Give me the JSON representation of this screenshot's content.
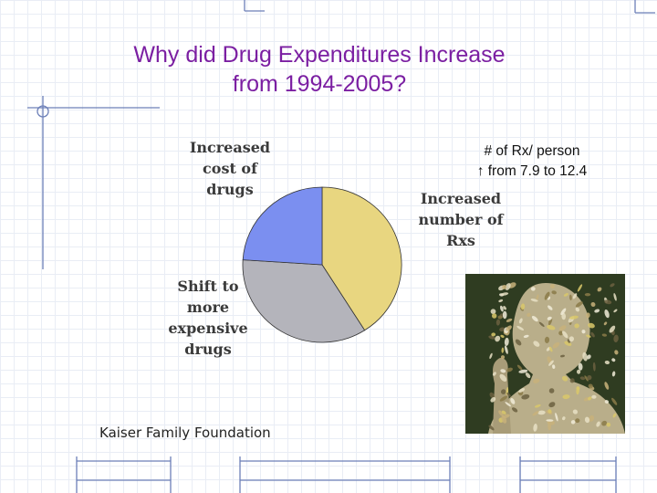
{
  "title": {
    "line1": "Why did Drug Expenditures Increase",
    "line2": "from 1994-2005?"
  },
  "chart_data": {
    "type": "pie",
    "slices": [
      {
        "label": "Increased number of Rxs",
        "value": 41,
        "color": "#e8d680"
      },
      {
        "label": "Shift to more expensive drugs",
        "value": 35,
        "color": "#b4b4bb"
      },
      {
        "label": "Increased cost of drugs",
        "value": 24,
        "color": "#7b8ff0"
      }
    ],
    "labels_text": {
      "cost": [
        "Increased",
        "cost of",
        "drugs"
      ],
      "shift": [
        "Shift to",
        "more",
        "expensive",
        "drugs"
      ],
      "number": [
        "Increased",
        "number of",
        "Rxs"
      ]
    },
    "annotation": {
      "line1": "# of Rx/ person",
      "arrow": "↑",
      "line2": " from 7.9 to 12.4"
    },
    "source": "Kaiser Family Foundation"
  },
  "image": {
    "icon": "pill-figure-illustration"
  },
  "colors": {
    "title": "#7b1fa2",
    "deco_line": "#6c7fb8"
  }
}
